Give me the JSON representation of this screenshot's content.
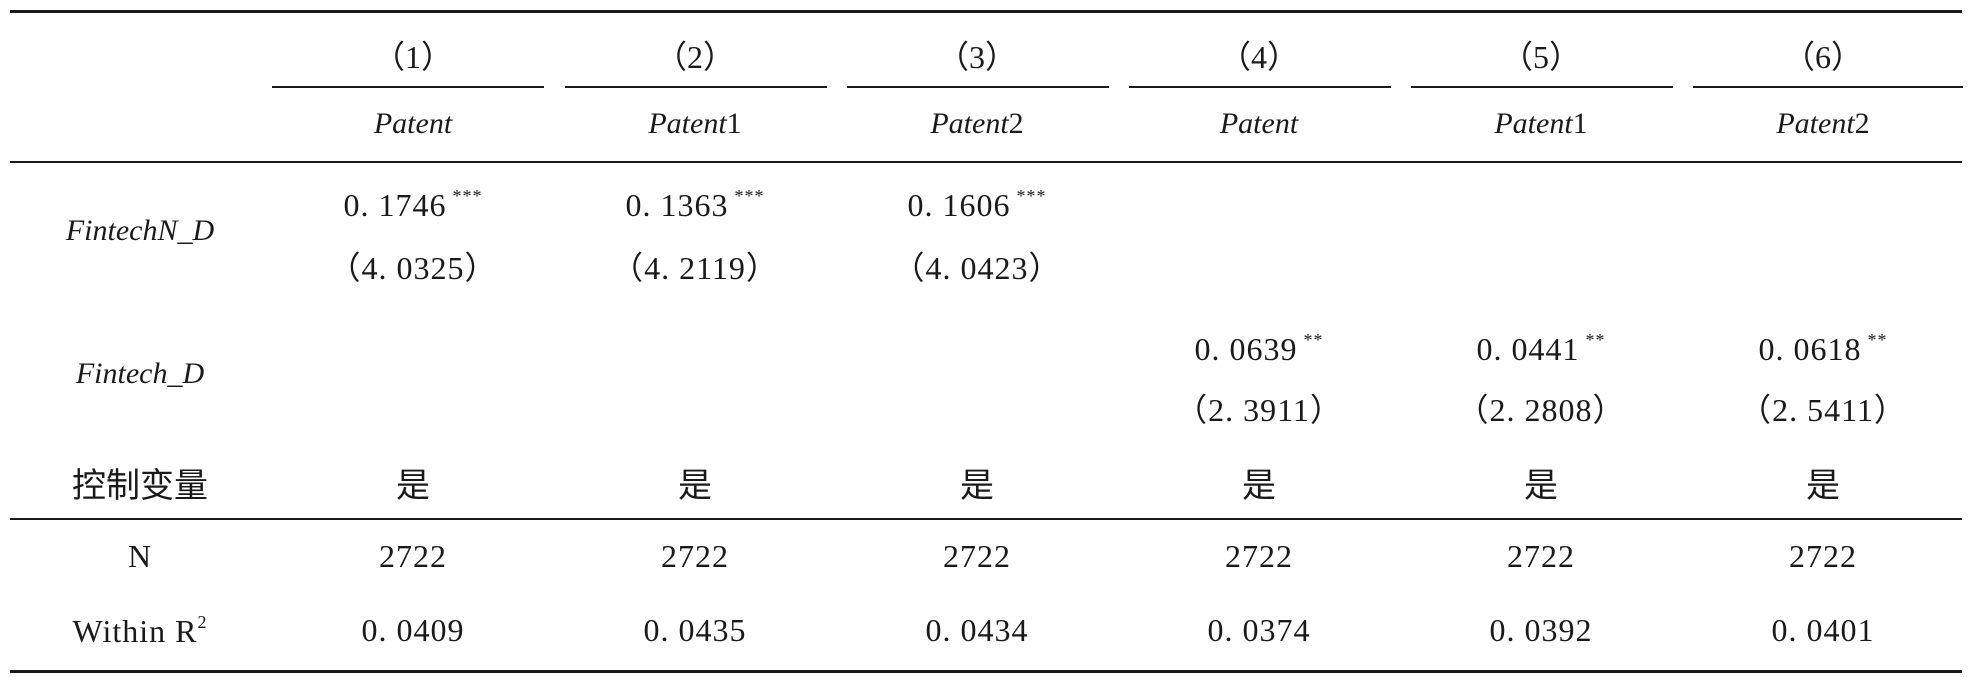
{
  "columns": [
    {
      "num": "（1）",
      "dep": "Patent",
      "dep_suffix": ""
    },
    {
      "num": "（2）",
      "dep": "Patent",
      "dep_suffix": "1"
    },
    {
      "num": "（3）",
      "dep": "Patent",
      "dep_suffix": "2"
    },
    {
      "num": "（4）",
      "dep": "Patent",
      "dep_suffix": ""
    },
    {
      "num": "（5）",
      "dep": "Patent",
      "dep_suffix": "1"
    },
    {
      "num": "（6）",
      "dep": "Patent",
      "dep_suffix": "2"
    }
  ],
  "rows": {
    "fintechN": {
      "label": "FintechN_D",
      "coef": [
        "0. 1746",
        "0. 1363",
        "0. 1606",
        "",
        "",
        ""
      ],
      "stars": [
        "***",
        "***",
        "***",
        "",
        "",
        ""
      ],
      "t": [
        "（4. 0325）",
        "（4. 2119）",
        "（4. 0423）",
        "",
        "",
        ""
      ]
    },
    "fintech": {
      "label": "Fintech_D",
      "coef": [
        "",
        "",
        "",
        "0. 0639",
        "0. 0441",
        "0. 0618"
      ],
      "stars": [
        "",
        "",
        "",
        "**",
        "**",
        "**"
      ],
      "t": [
        "",
        "",
        "",
        "（2. 3911）",
        "（2. 2808）",
        "（2. 5411）"
      ]
    },
    "controls": {
      "label": "控制变量",
      "values": [
        "是",
        "是",
        "是",
        "是",
        "是",
        "是"
      ]
    },
    "n": {
      "label": "N",
      "values": [
        "2722",
        "2722",
        "2722",
        "2722",
        "2722",
        "2722"
      ]
    },
    "r2": {
      "label": "Within R",
      "label_sup": "2",
      "values": [
        "0. 0409",
        "0. 0435",
        "0. 0434",
        "0. 0374",
        "0. 0392",
        "0. 0401"
      ]
    }
  }
}
